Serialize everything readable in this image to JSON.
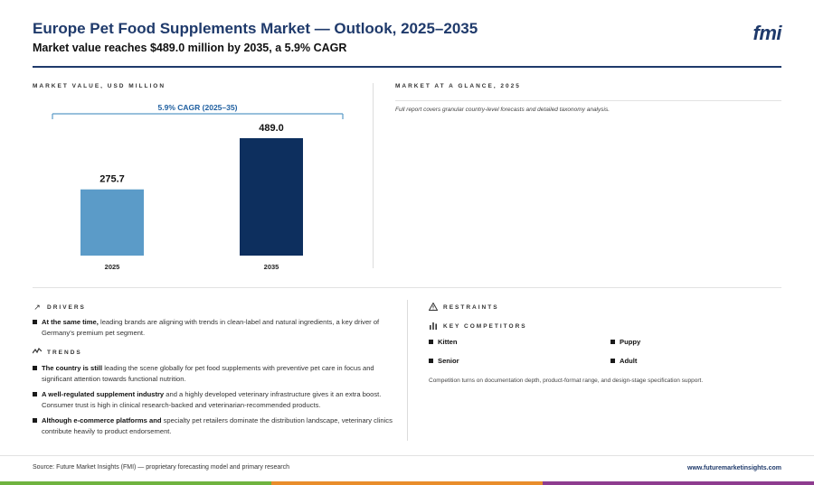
{
  "header": {
    "title": "Europe Pet Food Supplements Market — Outlook, 2025–2035",
    "subtitle": "Market value reaches $489.0 million by 2035, a 5.9% CAGR",
    "logo": "fmi"
  },
  "chart_section": {
    "label": "MARKET VALUE, USD MILLION"
  },
  "chart_data": {
    "type": "bar",
    "categories": [
      "2025",
      "2035"
    ],
    "values": [
      275.7,
      489.0
    ],
    "value_labels": [
      "275.7",
      "489.0"
    ],
    "colors": [
      "#5b9bc8",
      "#0d2f5e"
    ],
    "annotation": "5.9% CAGR (2025–35)",
    "ylim": [
      0,
      489.0
    ],
    "grid": false,
    "title": "",
    "xlabel": "",
    "ylabel": ""
  },
  "glance": {
    "label": "MARKET AT A GLANCE, 2025",
    "note": "Full report covers granular country-level forecasts and detailed taxonomy analysis."
  },
  "drivers": {
    "label": "DRIVERS",
    "items": [
      {
        "bold": "At the same time,",
        "text": " leading brands are aligning with trends in clean-label and natural ingredients, a key driver of Germany's premium pet segment."
      }
    ]
  },
  "trends": {
    "label": "TRENDS",
    "items": [
      {
        "bold": "The country is still",
        "text": " leading the scene globally for pet food supplements with preventive pet care in focus and significant attention towards functional nutrition."
      },
      {
        "bold": "A well-regulated supplement industry",
        "text": " and a highly developed veterinary infrastructure gives it an extra boost. Consumer trust is high in clinical research-backed and veterinarian-recommended products."
      },
      {
        "bold": "Although e-commerce platforms and",
        "text": " specialty pet retailers dominate the distribution landscape, veterinary clinics contribute heavily to product endorsement."
      }
    ]
  },
  "restraints": {
    "label": "RESTRAINTS"
  },
  "competitors": {
    "label": "KEY COMPETITORS",
    "items": [
      "Kitten",
      "Puppy",
      "Senior",
      "Adult"
    ],
    "note": "Competition turns on documentation depth, product-format range, and design-stage specification support."
  },
  "footer": {
    "source": "Source: Future Market Insights (FMI) — proprietary forecasting model and primary research",
    "site": "www.futuremarketinsights.com",
    "bar_colors": [
      "#6fb33f",
      "#e98d2b",
      "#8e3c8f"
    ]
  }
}
